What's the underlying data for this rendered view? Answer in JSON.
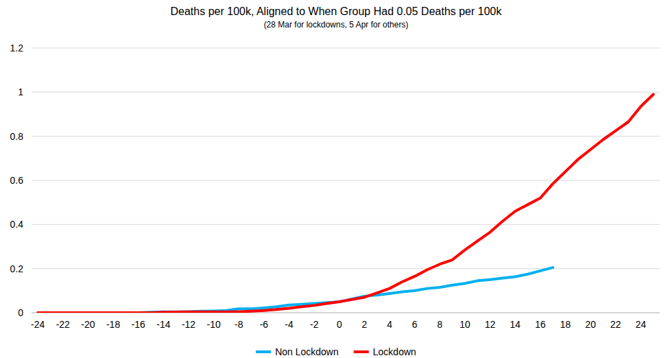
{
  "chart_data": {
    "type": "line",
    "title": "Deaths per 100k, Aligned to When Group Had 0.05 Deaths per 100k",
    "subtitle": "(28 Mar for lockdowns, 5 Apr for others)",
    "x": [
      -24,
      -23,
      -22,
      -21,
      -20,
      -19,
      -18,
      -17,
      -16,
      -15,
      -14,
      -13,
      -12,
      -11,
      -10,
      -9,
      -8,
      -7,
      -6,
      -5,
      -4,
      -3,
      -2,
      -1,
      0,
      1,
      2,
      3,
      4,
      5,
      6,
      7,
      8,
      9,
      10,
      11,
      12,
      13,
      14,
      15,
      16,
      17,
      18,
      19,
      20,
      21,
      22,
      23,
      24,
      25
    ],
    "series": [
      {
        "name": "Non Lockdown",
        "color": "#00b0f0",
        "values": [
          0,
          0,
          0,
          0,
          0,
          0,
          0,
          0,
          0,
          0.002,
          0.004,
          0.004,
          0.005,
          0.007,
          0.008,
          0.01,
          0.018,
          0.018,
          0.022,
          0.027,
          0.035,
          0.038,
          0.042,
          0.046,
          0.05,
          0.062,
          0.075,
          0.08,
          0.087,
          0.095,
          0.1,
          0.11,
          0.115,
          0.125,
          0.133,
          0.145,
          0.15,
          0.157,
          0.163,
          0.175,
          0.19,
          0.205,
          null,
          null,
          null,
          null,
          null,
          null,
          null,
          null
        ]
      },
      {
        "name": "Lockdown",
        "color": "#ff0000",
        "values": [
          0,
          0,
          0,
          0,
          0,
          0,
          0,
          0,
          0,
          0,
          0.002,
          0.003,
          0.004,
          0.004,
          0.004,
          0.004,
          0.005,
          0.007,
          0.01,
          0.015,
          0.02,
          0.027,
          0.033,
          0.042,
          0.05,
          0.06,
          0.07,
          0.09,
          0.11,
          0.14,
          0.165,
          0.195,
          0.22,
          0.24,
          0.285,
          0.325,
          0.365,
          0.415,
          0.46,
          0.49,
          0.52,
          0.585,
          0.64,
          0.695,
          0.74,
          0.785,
          0.825,
          0.865,
          0.935,
          0.99
        ]
      }
    ],
    "xlim": [
      -24.5,
      25.5
    ],
    "xticks": [
      -24,
      -22,
      -20,
      -18,
      -16,
      -14,
      -12,
      -10,
      -8,
      -6,
      -4,
      -2,
      0,
      2,
      4,
      6,
      8,
      10,
      12,
      14,
      16,
      18,
      20,
      22,
      24
    ],
    "ylim": [
      0,
      1.2
    ],
    "yticks": [
      0,
      0.2,
      0.4,
      0.6,
      0.8,
      1,
      1.2
    ],
    "grid": true,
    "legend": "bottom"
  }
}
